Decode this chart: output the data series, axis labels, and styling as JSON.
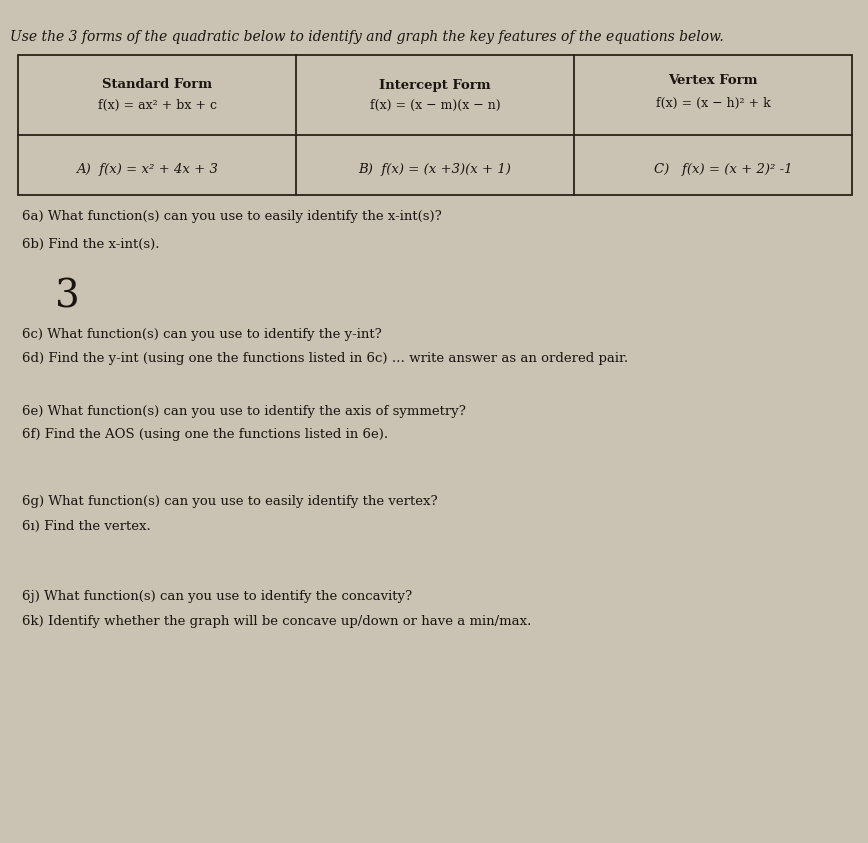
{
  "bg_color": "#cac2b2",
  "title": "Use the 3 forms of the quadratic below to identify and graph the key features of the equations below.",
  "col1_header1": "Standard Form",
  "col1_header2": "f(x) = ax² + bx + c",
  "col2_header1": "Intercept Form",
  "col2_header2": "f(x) = (x − m)(x − n)",
  "col3_header1": "Vertex Form",
  "col3_header2": "f(x) = (x − h)² + k",
  "eq_A": "A)  f(x) = x² + 4x + 3",
  "eq_B": "B)  f(x) = (x +3)(x + 1)",
  "eq_C": "C)   f(x) = (x + 2)² -1",
  "q6a": "6a) What function(s) can you use to easily identify the x-int(s)?",
  "q6b": "6b) Find the x-int(s).",
  "answer_6b": "3",
  "q6c": "6c) What function(s) can you use to identify the y-int?",
  "q6d": "6d) Find the y-int (using one the functions listed in 6c) … write answer as an ordered pair.",
  "q6e": "6e) What function(s) can you use to identify the axis of symmetry?",
  "q6f": "6f) Find the AOS (using one the functions listed in 6e).",
  "q6g": "6g) What function(s) can you use to easily identify the vertex?",
  "q6i": "6ı) Find the vertex.",
  "q6j": "6j) What function(s) can you use to identify the concavity?",
  "q6k": "6k) Identify whether the graph will be concave up/down or have a min/max.",
  "text_color": "#1a1510",
  "table_line_color": "#2a2218",
  "title_fontsize": 10.0,
  "header_fontsize": 9.5,
  "body_fontsize": 9.5,
  "q_fontsize": 9.5,
  "ans_fontsize": 28
}
